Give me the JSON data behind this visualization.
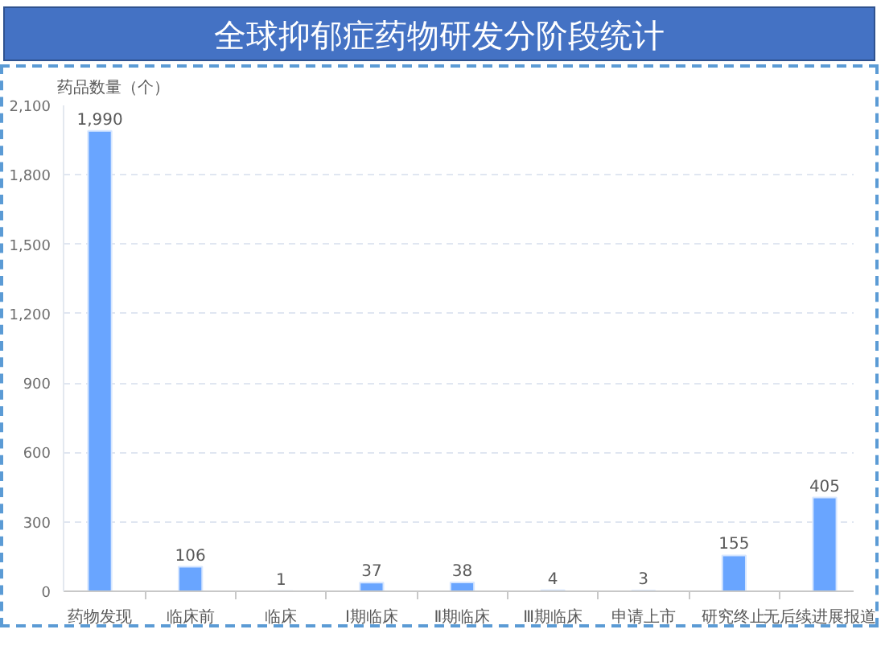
{
  "chart_data": {
    "type": "bar",
    "title": "全球抑郁症药物研发分阶段统计",
    "ylabel": "药品数量（个）",
    "categories": [
      "药物发现",
      "临床前",
      "临床",
      "Ⅰ期临床",
      "Ⅱ期临床",
      "Ⅲ期临床",
      "申请上市",
      "研究终止",
      "无后续进展报道"
    ],
    "values": [
      1990,
      106,
      1,
      37,
      38,
      4,
      3,
      155,
      405
    ],
    "value_labels": [
      "1,990",
      "106",
      "1",
      "37",
      "38",
      "4",
      "3",
      "155",
      "405"
    ],
    "color": "#69a5ff",
    "ylim": [
      0,
      2100
    ],
    "yticks": [
      0,
      300,
      600,
      900,
      {
        "value": 1200,
        "label": "1,200"
      },
      {
        "value": 1500,
        "label": "1,500"
      },
      {
        "value": 1800,
        "label": "1,800"
      },
      {
        "value": 2100,
        "label": "2,100"
      }
    ],
    "grid": "y"
  }
}
